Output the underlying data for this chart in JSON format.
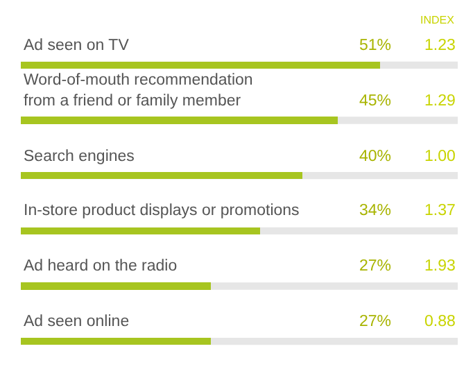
{
  "chart_data": {
    "type": "bar",
    "orientation": "horizontal",
    "categories": [
      "Ad seen on TV",
      "Word-of-mouth recommendation\nfrom a friend or family member",
      "Search engines",
      "In-store product displays or promotions",
      "Ad heard on the radio",
      "Ad seen online"
    ],
    "values": [
      51,
      45,
      40,
      34,
      27,
      27
    ],
    "value_labels": [
      "51%",
      "45%",
      "40%",
      "34%",
      "27%",
      "27%"
    ],
    "color": "#a7c520",
    "xlim": [
      0,
      62
    ],
    "annotations": [
      "INDEX",
      "1.23",
      "1.29",
      "1.00",
      "1.37",
      "1.93",
      "0.88"
    ],
    "grid": false
  }
}
